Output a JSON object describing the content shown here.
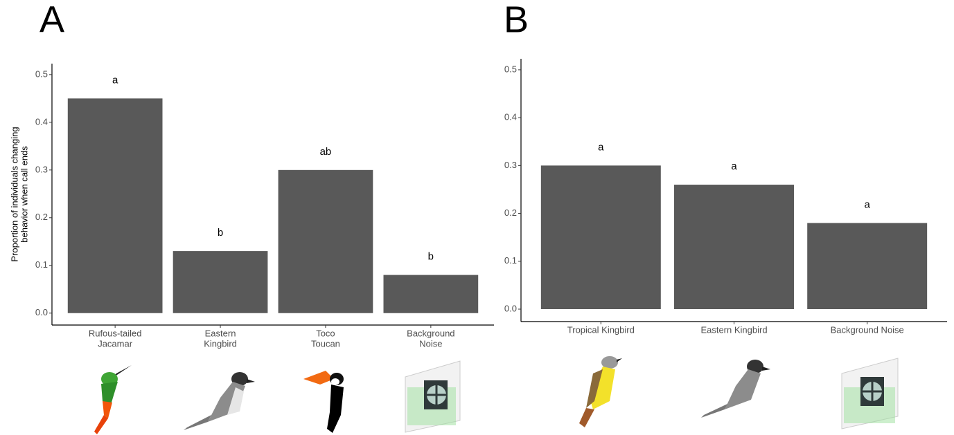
{
  "chart_data": [
    {
      "type": "bar",
      "panel": "A",
      "ylabel": [
        "Proportion of individuals changing",
        "behavior when call ends"
      ],
      "categories": [
        [
          "Rufous-tailed",
          "Jacamar"
        ],
        [
          "Eastern",
          "Kingbird"
        ],
        [
          "Toco",
          "Toucan"
        ],
        [
          "Background",
          "Noise"
        ]
      ],
      "values": [
        0.45,
        0.13,
        0.3,
        0.08
      ],
      "annotations": [
        "a",
        "b",
        "ab",
        "b"
      ],
      "color": "#595959",
      "ylim": [
        -0.025,
        0.523
      ],
      "yticks": [
        {
          "value": 0,
          "label": "0.0"
        },
        0.1,
        0.2,
        0.3,
        0.4,
        0.5
      ]
    },
    {
      "type": "bar",
      "panel": "B",
      "categories": [
        "Tropical Kingbird",
        "Eastern Kingbird",
        "Background Noise"
      ],
      "values": [
        0.3,
        0.26,
        0.18
      ],
      "annotations": [
        "a",
        "a",
        "a"
      ],
      "color": "#595959",
      "ylim": [
        -0.026,
        0.523
      ],
      "yticks": [
        {
          "value": 0,
          "label": "0.0"
        },
        0.1,
        0.2,
        0.3,
        0.4,
        0.5
      ]
    }
  ]
}
